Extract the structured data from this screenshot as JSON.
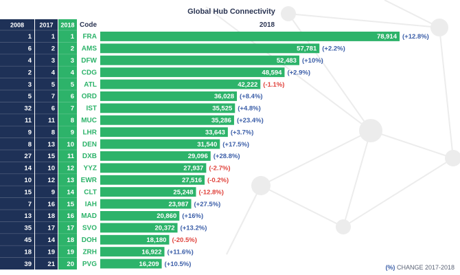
{
  "chart_data": {
    "type": "bar",
    "title": "Global Hub Connectivity",
    "year_label": "2018",
    "rank_columns": [
      "2008",
      "2017",
      "2018"
    ],
    "code_header": "Code",
    "categories": [
      "FRA",
      "AMS",
      "DFW",
      "CDG",
      "ATL",
      "ORD",
      "IST",
      "MUC",
      "LHR",
      "DEN",
      "DXB",
      "YYZ",
      "EWR",
      "CLT",
      "IAH",
      "MAD",
      "SVO",
      "DOH",
      "ZRH",
      "PVG"
    ],
    "rank_2008": [
      1,
      6,
      4,
      2,
      3,
      5,
      32,
      11,
      9,
      8,
      27,
      14,
      10,
      15,
      7,
      13,
      35,
      45,
      18,
      39
    ],
    "rank_2017": [
      1,
      2,
      3,
      4,
      5,
      7,
      6,
      11,
      8,
      13,
      15,
      10,
      12,
      9,
      16,
      18,
      17,
      14,
      19,
      21
    ],
    "rank_2018": [
      1,
      2,
      3,
      4,
      5,
      6,
      7,
      8,
      9,
      10,
      11,
      12,
      13,
      14,
      15,
      16,
      17,
      18,
      19,
      20
    ],
    "values": [
      78914,
      57781,
      52483,
      48594,
      42222,
      36028,
      35525,
      35286,
      33643,
      31540,
      29096,
      27937,
      27516,
      25248,
      23987,
      20860,
      20372,
      18180,
      16922,
      16209
    ],
    "value_labels": [
      "78,914",
      "57,781",
      "52,483",
      "48,594",
      "42,222",
      "36,028",
      "35,525",
      "35,286",
      "33,643",
      "31,540",
      "29,096",
      "27,937",
      "27,516",
      "25,248",
      "23,987",
      "20,860",
      "20,372",
      "18,180",
      "16,922",
      "16,209"
    ],
    "changes": [
      "(+12.8%)",
      "(+2.2%)",
      "(+10%)",
      "(+2.9%)",
      "(-1.1%)",
      "(+8.4%)",
      "(+4.8%)",
      "(+23.4%)",
      "(+3.7%)",
      "(+17.5%)",
      "(+28.8%)",
      "(-2.7%)",
      "(-0.2%)",
      "(-12.8%)",
      "(+27.5%)",
      "(+16%)",
      "(+13.2%)",
      "(-20.5%)",
      "(+11.6%)",
      "(+10.5%)"
    ],
    "colors": {
      "bar": "#2db36a",
      "rank_dark": "#1e3157",
      "rank_green": "#2db36a",
      "positive": "#3b5ea8",
      "negative": "#e0433c",
      "text_dark": "#2b3553"
    }
  },
  "legend": {
    "pct_label": "(%)",
    "text": "CHANGE 2017-2018"
  }
}
